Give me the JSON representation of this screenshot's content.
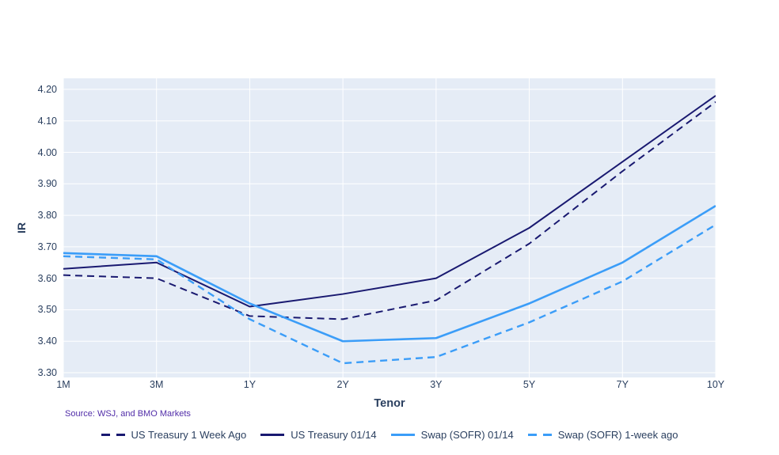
{
  "figure": {
    "source_note": "Source: WSJ, and BMO Markets"
  },
  "chart_data": {
    "type": "line",
    "title": "",
    "xlabel": "Tenor",
    "ylabel": "IR",
    "categories": [
      "1M",
      "3M",
      "1Y",
      "2Y",
      "3Y",
      "5Y",
      "7Y",
      "10Y"
    ],
    "series": [
      {
        "name": "US Treasury 1 Week Ago",
        "color": "#191970",
        "dash": "dash",
        "width": 2,
        "values": [
          3.61,
          3.6,
          3.48,
          3.47,
          3.53,
          3.71,
          3.94,
          4.16
        ]
      },
      {
        "name": "US Treasury 01/14",
        "color": "#191970",
        "dash": "solid",
        "width": 2,
        "values": [
          3.63,
          3.65,
          3.51,
          3.55,
          3.6,
          3.76,
          3.97,
          4.18
        ]
      },
      {
        "name": "Swap (SOFR) 01/14",
        "color": "#3b9df8",
        "dash": "solid",
        "width": 2.6,
        "values": [
          3.68,
          3.67,
          3.52,
          3.4,
          3.41,
          3.52,
          3.65,
          3.83
        ]
      },
      {
        "name": "Swap (SOFR) 1-week ago",
        "color": "#3b9df8",
        "dash": "dash",
        "width": 2.4,
        "values": [
          3.67,
          3.66,
          3.47,
          3.33,
          3.35,
          3.46,
          3.59,
          3.77
        ]
      }
    ],
    "yticks": [
      "3.30",
      "3.40",
      "3.50",
      "3.60",
      "3.70",
      "3.80",
      "3.90",
      "4.00",
      "4.10",
      "4.20"
    ],
    "ylim": [
      3.285,
      4.235
    ],
    "grid": true,
    "plot_bg": "#e5ecf6",
    "grid_color": "#ffffff",
    "tick_color": "#2a3f5f",
    "legend_position": "bottom-center"
  }
}
